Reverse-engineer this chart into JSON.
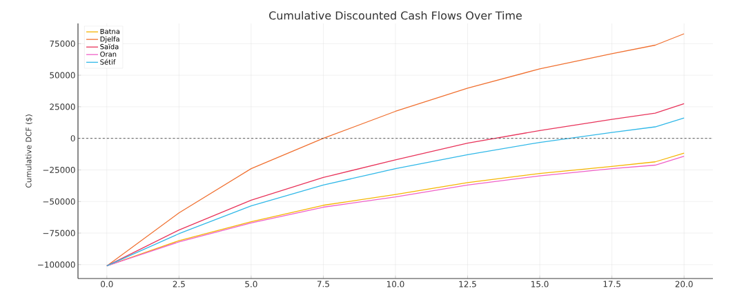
{
  "chart_data": {
    "type": "line",
    "title": "Cumulative Discounted Cash Flows Over Time",
    "ylabel": "Cumulative DCF ($)",
    "x": [
      0,
      2.5,
      5,
      7.5,
      10,
      12.5,
      15,
      17.5,
      19,
      20
    ],
    "series": [
      {
        "name": "Batna",
        "color": "#f5b400",
        "values": [
          -101000,
          -81000,
          -66000,
          -53000,
          -44500,
          -35000,
          -27800,
          -22200,
          -18600,
          -11700
        ]
      },
      {
        "name": "Djelfa",
        "color": "#f07030",
        "values": [
          -101000,
          -59000,
          -24000,
          0,
          21400,
          39800,
          55000,
          67000,
          73800,
          82800
        ]
      },
      {
        "name": "Saïda",
        "color": "#e8335a",
        "values": [
          -101000,
          -72600,
          -49000,
          -31000,
          -17000,
          -3800,
          6200,
          15000,
          19900,
          27500
        ]
      },
      {
        "name": "Oran",
        "color": "#f060c8",
        "values": [
          -101000,
          -82000,
          -67000,
          -54500,
          -46400,
          -37000,
          -29700,
          -24000,
          -21200,
          -14200
        ]
      },
      {
        "name": "Sétif",
        "color": "#30b8e8",
        "values": [
          -101000,
          -75500,
          -53500,
          -37000,
          -24000,
          -12900,
          -3200,
          4700,
          9100,
          16100
        ]
      }
    ],
    "xlim": [
      -1,
      21
    ],
    "ylim": [
      -111000,
      91000
    ],
    "xticks": [
      {
        "value": 0,
        "label": "0.0"
      },
      {
        "value": 2.5,
        "label": "2.5"
      },
      {
        "value": 5,
        "label": "5.0"
      },
      {
        "value": 7.5,
        "label": "7.5"
      },
      {
        "value": 10,
        "label": "10.0"
      },
      {
        "value": 12.5,
        "label": "12.5"
      },
      {
        "value": 15,
        "label": "15.0"
      },
      {
        "value": 17.5,
        "label": "17.5"
      },
      {
        "value": 20,
        "label": "20.0"
      }
    ],
    "yticks": [
      {
        "value": -100000,
        "label": "−100000"
      },
      {
        "value": -75000,
        "label": "−75000"
      },
      {
        "value": -50000,
        "label": "−50000"
      },
      {
        "value": -25000,
        "label": "−25000"
      },
      0,
      25000,
      50000,
      75000
    ],
    "ref_lines": [
      {
        "axis": "y",
        "value": 0,
        "color": "#555555",
        "line_style": "dashed"
      }
    ],
    "grid": true,
    "legend": "top left"
  }
}
